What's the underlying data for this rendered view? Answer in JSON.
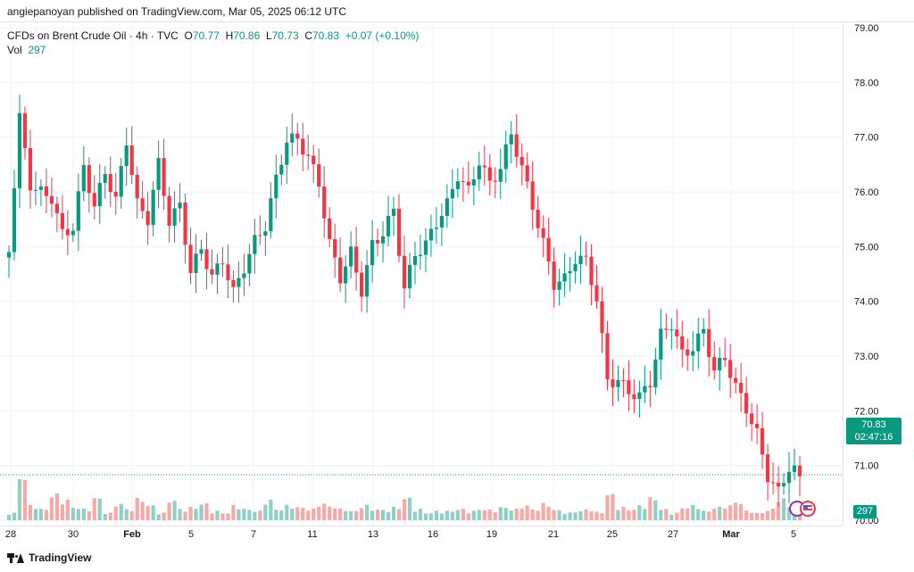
{
  "header": {
    "published": "angiepanoyan published on TradingView.com, Mar 05, 2025 06:12 UTC"
  },
  "legend": {
    "symbol": "CFDs on Brent Crude Oil · 4h · TVC",
    "o_label": "O",
    "o_value": "70.77",
    "h_label": "H",
    "h_value": "70.86",
    "l_label": "L",
    "l_value": "70.73",
    "c_label": "C",
    "c_value": "70.83",
    "change": "+0.07 (+0.10%)",
    "vol_label": "Vol",
    "vol_value": "297"
  },
  "price_box": {
    "price": "70.83",
    "countdown": "02:47:16"
  },
  "volume_box": {
    "value": "297"
  },
  "footer": {
    "brand": "TradingView"
  },
  "colors": {
    "up": "#089981",
    "down": "#f23645",
    "up_vol": "#8fcfc4",
    "down_vol": "#f7a9a7",
    "grid": "#f0f3fa"
  },
  "chart_data": {
    "type": "candlestick",
    "y_range": [
      69.9,
      79.1
    ],
    "y_ticks": [
      "79.00",
      "78.00",
      "77.00",
      "76.00",
      "75.00",
      "74.00",
      "73.00",
      "72.00",
      "71.00",
      "70.00"
    ],
    "x_ticks": [
      "28",
      "30",
      "Feb",
      "5",
      "7",
      "11",
      "13",
      "16",
      "19",
      "21",
      "25",
      "27",
      "Mar",
      "5"
    ],
    "current_price": 70.83,
    "close_path": [
      74.9,
      77.4,
      76.1,
      76.0,
      75.9,
      75.2,
      75.4,
      76.4,
      75.8,
      76.3,
      75.9,
      76.9,
      75.8,
      75.5,
      76.5,
      75.5,
      75.7,
      74.6,
      74.9,
      74.5,
      74.7,
      74.2,
      74.6,
      75.1,
      75.4,
      76.2,
      77.0,
      76.9,
      76.7,
      76.1,
      75.1,
      74.4,
      74.9,
      74.2,
      75.0,
      75.3,
      75.6,
      74.3,
      74.8,
      75.1,
      75.4,
      75.8,
      76.3,
      76.0,
      76.6,
      76.1,
      76.5,
      77.0,
      76.5,
      75.7,
      75.1,
      74.3,
      74.4,
      74.8,
      74.7,
      74.1,
      72.5,
      72.6,
      72.3,
      72.3,
      72.5,
      73.4,
      73.6,
      73.0,
      73.2,
      73.4,
      72.8,
      72.9,
      72.5,
      72.0,
      71.6,
      70.8,
      70.5,
      71.0,
      70.8
    ],
    "volume_path": [
      20,
      120,
      40,
      30,
      70,
      55,
      35,
      30,
      60,
      20,
      45,
      30,
      58,
      40,
      20,
      55,
      30,
      35,
      45,
      25,
      20,
      40,
      30,
      25,
      55,
      30,
      40,
      35,
      30,
      45,
      38,
      30,
      25,
      40,
      30,
      28,
      35,
      60,
      30,
      20,
      25,
      25,
      30,
      25,
      30,
      28,
      35,
      30,
      40,
      30,
      45,
      28,
      20,
      25,
      30,
      22,
      70,
      35,
      30,
      40,
      60,
      30,
      20,
      35,
      40,
      25,
      35,
      40,
      50,
      25,
      20,
      30,
      60,
      35,
      20
    ],
    "volume_range": [
      0,
      300
    ]
  }
}
